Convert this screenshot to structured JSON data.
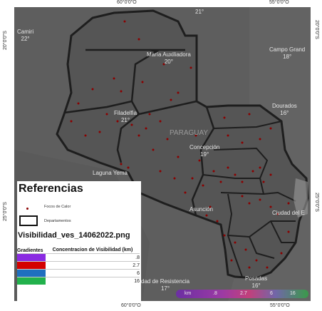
{
  "coords": {
    "top_left": "60°0'0\"O",
    "top_right": "55°0'0\"O",
    "bottom_left": "60°0'0\"O",
    "bottom_right": "55°0'0\"O",
    "left_top": "20°0'0\"S",
    "left_bottom": "25°0'0\"S",
    "right_top": "20°0'0\"S",
    "right_bottom": "25°0'0\"S"
  },
  "places": [
    {
      "id": "camiri",
      "name": "Camiri",
      "temp": "22°"
    },
    {
      "id": "maria-auxiliadora",
      "name": "María Auxiliadora",
      "temp": "20°"
    },
    {
      "id": "campo-grande",
      "name": "Campo Grand",
      "temp": "18°"
    },
    {
      "id": "dourados",
      "name": "Dourados",
      "temp": "16°"
    },
    {
      "id": "filadelfia",
      "name": "Filadelfia",
      "temp": "21°"
    },
    {
      "id": "concepcion",
      "name": "Concepción",
      "temp": "19°"
    },
    {
      "id": "laguna-yema",
      "name": "Laguna Yema",
      "temp": ""
    },
    {
      "id": "asuncion",
      "name": "Asunción",
      "temp": ""
    },
    {
      "id": "ciudad-del-este",
      "name": "Ciudad del E",
      "temp": ""
    },
    {
      "id": "resistencia",
      "name": "dad de Resistencia",
      "temp": "17°"
    },
    {
      "id": "posadas",
      "name": "Posadas",
      "temp": "16°"
    },
    {
      "id": "top-temp",
      "name": "",
      "temp": "21°"
    }
  ],
  "country_label": "PARAGUAY",
  "legend": {
    "title": "Referencias",
    "hotspot_label": "Focos de Calor",
    "department_label": "Departamentos",
    "image_name": "Visibilidad_ves_14062022.png",
    "table_headers": {
      "gradients": "Gradientes",
      "concentration": "Concentracion de Visibilidad (km)"
    },
    "rows": [
      {
        "color": "#8a2be2",
        "value": ".8"
      },
      {
        "color": "#d40000",
        "value": "2.7"
      },
      {
        "color": "#1f6fbf",
        "value": "6"
      },
      {
        "color": "#22b14c",
        "value": "16"
      }
    ]
  },
  "scale": {
    "unit": "km",
    "values": [
      ".8",
      "2.7",
      "6",
      "16"
    ]
  }
}
